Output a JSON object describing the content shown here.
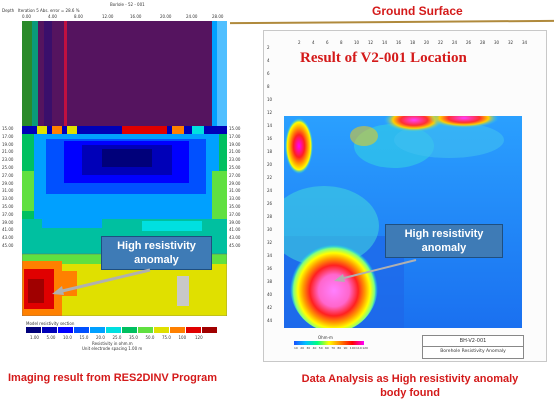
{
  "header": {
    "ground_surface": "Ground Surface"
  },
  "left_panel": {
    "title_small": "Borlole - 52 - 001",
    "iteration_note": "Iteration 5 Abs. error = 28.6 %",
    "depth_label": "Depth",
    "top_ticks": [
      "0.00",
      "4.00",
      "8.00",
      "12.00",
      "16.00",
      "20.00",
      "24.00",
      "28.00"
    ],
    "depth_ticks": [
      "15.00",
      "17.00",
      "19.00",
      "21.00",
      "23.00",
      "25.00",
      "27.00",
      "29.00",
      "31.00",
      "33.00",
      "35.00",
      "37.00",
      "39.00",
      "41.00",
      "43.00",
      "45.00"
    ],
    "legend_title": "Model resistivity section",
    "legend_values": [
      "1.00",
      "5.00",
      "10.0",
      "15.0",
      "20.0",
      "25.0",
      "35.0",
      "50.0",
      "75.0",
      "100",
      "120"
    ],
    "legend_colors": [
      "#00007a",
      "#0000b8",
      "#0000ff",
      "#0050ff",
      "#00a0ff",
      "#00e0e0",
      "#00c060",
      "#60e040",
      "#e0e000",
      "#ff8000",
      "#e00000",
      "#a00000"
    ],
    "unit_label": "Resistivity in ohm.m",
    "spacing_label": "Unit electrode spacing 1.00 m",
    "callout": "High resistivity anomaly",
    "caption": "Imaging result from RES2DINV Program"
  },
  "right_panel": {
    "title": "Result of V2-001 Location",
    "top_ticks": [
      "2",
      "4",
      "6",
      "8",
      "10",
      "12",
      "14",
      "16",
      "18",
      "20",
      "22",
      "24",
      "26",
      "28",
      "30",
      "32",
      "34"
    ],
    "side_ticks": [
      "2",
      "4",
      "6",
      "8",
      "10",
      "12",
      "14",
      "16",
      "18",
      "20",
      "22",
      "24",
      "26",
      "28",
      "30",
      "32",
      "34",
      "36",
      "38",
      "40",
      "42",
      "44"
    ],
    "callout": "High resistivity anomaly",
    "scale_label": "Ohm-m",
    "scale_values": [
      "10",
      "20",
      "30",
      "40",
      "50",
      "60",
      "70",
      "80",
      "90",
      "100",
      "110",
      "120"
    ],
    "info_top": "BH-V2-001",
    "info_bottom": "Borehole Resistivity Anomaly",
    "caption": "Data Analysis as High resistivity anomaly body found"
  },
  "colors": {
    "ground_line": "#b08a3c",
    "caption_red": "#d41a1a",
    "callout_blue": "#3e7bb6"
  }
}
